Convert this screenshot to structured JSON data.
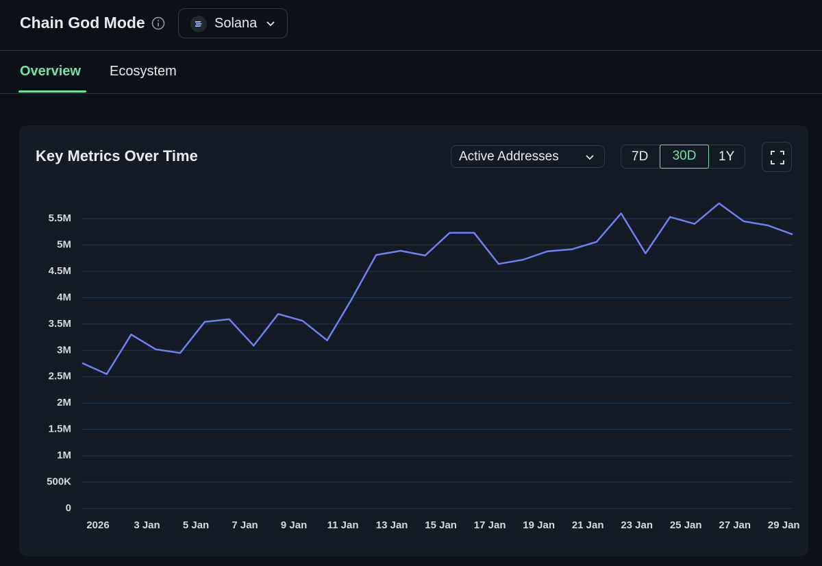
{
  "header": {
    "title": "Chain God Mode",
    "chain": "Solana"
  },
  "tabs": [
    "Overview",
    "Ecosystem"
  ],
  "card": {
    "metric": "Active Addresses",
    "ranges": [
      "7D",
      "30D",
      "1Y"
    ]
  },
  "chart_data": {
    "type": "line",
    "title": "Key Metrics Over Time",
    "categories": [
      "2026",
      null,
      "3 Jan",
      null,
      "5 Jan",
      null,
      "7 Jan",
      null,
      "9 Jan",
      null,
      "11 Jan",
      null,
      "13 Jan",
      null,
      "15 Jan",
      null,
      "17 Jan",
      null,
      "19 Jan",
      null,
      "21 Jan",
      null,
      "23 Jan",
      null,
      "25 Jan",
      null,
      "27 Jan",
      null,
      "29 Jan",
      null
    ],
    "values": [
      2760000,
      2550000,
      3300000,
      3020000,
      2950000,
      3540000,
      3590000,
      3090000,
      3690000,
      3560000,
      3190000,
      3970000,
      4810000,
      4890000,
      4800000,
      5230000,
      5230000,
      4640000,
      4720000,
      4880000,
      4920000,
      5060000,
      5600000,
      4840000,
      5530000,
      5400000,
      5790000,
      5450000,
      5370000,
      5200000
    ],
    "color": "#6d7ff2",
    "ylim": [
      0,
      6000000
    ],
    "yticks": [
      0,
      {
        "value": 500000,
        "label": "500K"
      },
      {
        "value": 1000000,
        "label": "1M"
      },
      {
        "value": 1500000,
        "label": "1.5M"
      },
      {
        "value": 2000000,
        "label": "2M"
      },
      {
        "value": 2500000,
        "label": "2.5M"
      },
      {
        "value": 3000000,
        "label": "3M"
      },
      {
        "value": 3500000,
        "label": "3.5M"
      },
      {
        "value": 4000000,
        "label": "4M"
      },
      {
        "value": 4500000,
        "label": "4.5M"
      },
      {
        "value": 5000000,
        "label": "5M"
      },
      {
        "value": 5500000,
        "label": "5.5M"
      }
    ],
    "grid": true
  }
}
